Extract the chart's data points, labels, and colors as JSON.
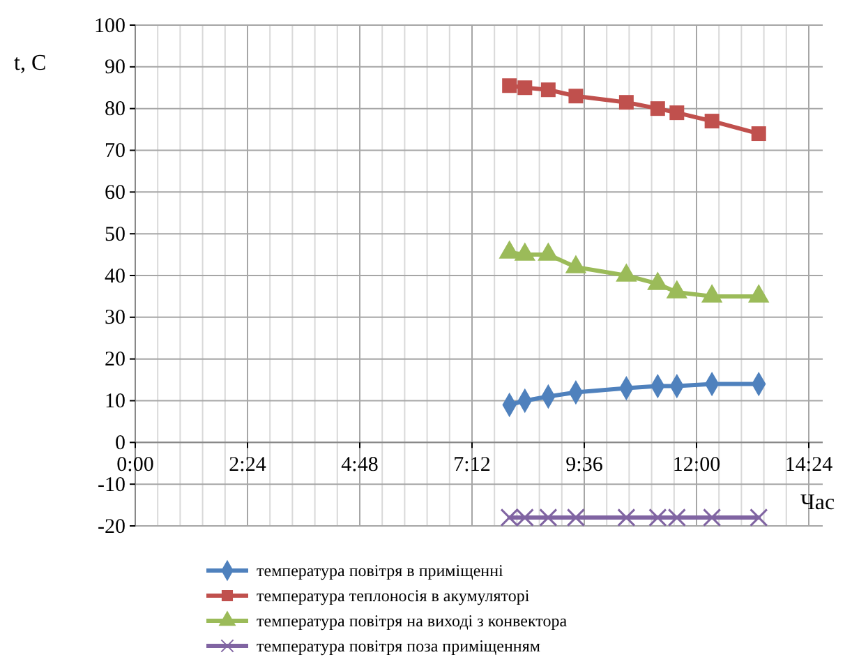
{
  "chart_data": {
    "type": "line",
    "x": [
      8,
      8.33,
      8.83,
      9.42,
      10.5,
      11.17,
      11.58,
      12.33,
      13.33
    ],
    "series": [
      {
        "name": "температура повітря в приміщенні",
        "color": "#4f81bd",
        "marker": "diamond",
        "values": [
          9,
          10,
          11,
          12,
          13,
          13.5,
          13.5,
          14,
          14
        ]
      },
      {
        "name": "температура теплоносія в акумуляторі",
        "color": "#c0504d",
        "marker": "square",
        "values": [
          85.5,
          85,
          84.5,
          83,
          81.5,
          80,
          79,
          77,
          74
        ]
      },
      {
        "name": "температура повітря на виході з конвектора",
        "color": "#9bbb59",
        "marker": "triangle",
        "values": [
          45.5,
          45,
          45,
          42,
          40,
          38,
          36,
          35,
          35
        ]
      },
      {
        "name": "температура повітря поза приміщенням",
        "color": "#8064a2",
        "marker": "cross",
        "values": [
          -18,
          -18,
          -18,
          -18,
          -18,
          -18,
          -18,
          -18,
          -18
        ]
      }
    ],
    "xlim": [
      0,
      14.4
    ],
    "xticks": [
      {
        "value": 0,
        "label": "0:00"
      },
      {
        "value": 2.4,
        "label": "2:24"
      },
      {
        "value": 4.8,
        "label": "4:48"
      },
      {
        "value": 7.2,
        "label": "7:12"
      },
      {
        "value": 9.6,
        "label": "9:36"
      },
      {
        "value": 12,
        "label": "12:00"
      },
      {
        "value": 14.4,
        "label": "14:24"
      }
    ],
    "ylim": [
      -20,
      100
    ],
    "yticks": [
      -20,
      -10,
      0,
      10,
      20,
      30,
      40,
      50,
      60,
      70,
      80,
      90,
      100
    ],
    "xlabel": "Час",
    "ylabel": "t, C",
    "grid": true,
    "legend": "bottom"
  }
}
